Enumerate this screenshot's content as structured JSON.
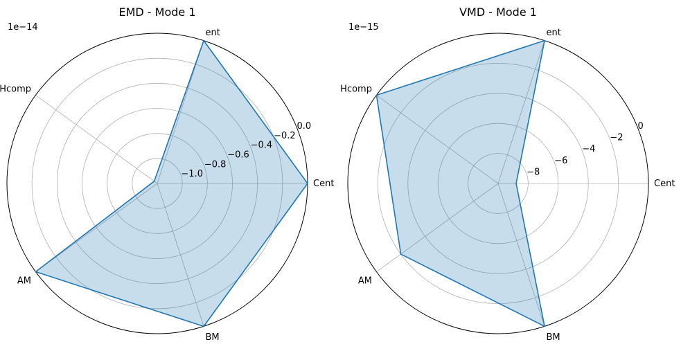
{
  "chart_data": [
    {
      "type": "radar",
      "title": "EMD - Mode 1",
      "offset_text": "1e−14",
      "categories": [
        "Cent",
        "ent",
        "Hcomp",
        "AM",
        "BM"
      ],
      "series": [
        {
          "values": [
            0.0,
            0.0,
            -1.17,
            0.0,
            0.0
          ],
          "color": "#1f77b4",
          "fill": "#1f77b4",
          "fill_opacity": 0.25
        }
      ],
      "rlim": [
        -1.2,
        0.0
      ],
      "ticks": [
        -1.0,
        -0.8,
        -0.6,
        -0.4,
        -0.2,
        0.0
      ],
      "tick_labels": [
        "−1.0",
        "−0.8",
        "−0.6",
        "−0.4",
        "−0.2",
        "0.0"
      ],
      "grid": true
    },
    {
      "type": "radar",
      "title": "VMD - Mode 1",
      "offset_text": "1e−15",
      "categories": [
        "Cent",
        "ent",
        "Hcomp",
        "AM",
        "BM"
      ],
      "series": [
        {
          "values": [
            -8.8,
            0.0,
            0.0,
            -2.0,
            0.0
          ],
          "color": "#1f77b4",
          "fill": "#1f77b4",
          "fill_opacity": 0.25
        }
      ],
      "rlim": [
        -10,
        0
      ],
      "ticks": [
        -8,
        -6,
        -4,
        -2,
        0
      ],
      "tick_labels": [
        "−8",
        "−6",
        "−4",
        "−2",
        "0"
      ],
      "grid": true
    }
  ]
}
